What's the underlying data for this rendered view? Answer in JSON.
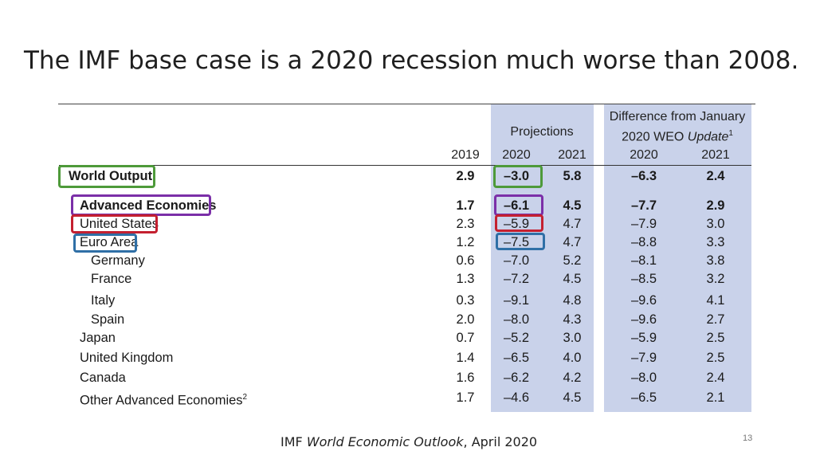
{
  "slide": {
    "title": "The IMF base case is a 2020 recession much worse than 2008.",
    "source_prefix": "IMF ",
    "source_italic": "World Economic Outlook",
    "source_suffix": ", April 2020",
    "page_number": "13"
  },
  "table": {
    "projections_label": "Projections",
    "diff_line1": "Difference from January",
    "diff_line2_prefix": "2020 WEO ",
    "diff_line2_italic": "Update",
    "diff_line2_sup": "1",
    "year_headers": {
      "y2019": "2019",
      "p2020": "2020",
      "p2021": "2021",
      "d2020": "2020",
      "d2021": "2021"
    },
    "rows": [
      {
        "label": "World Output",
        "y2019": "2.9",
        "p2020": "–3.0",
        "p2021": "5.8",
        "d2020": "–6.3",
        "d2021": "2.4"
      },
      {
        "label": "Advanced Economies",
        "y2019": "1.7",
        "p2020": "–6.1",
        "p2021": "4.5",
        "d2020": "–7.7",
        "d2021": "2.9"
      },
      {
        "label": "United States",
        "y2019": "2.3",
        "p2020": "–5.9",
        "p2021": "4.7",
        "d2020": "–7.9",
        "d2021": "3.0"
      },
      {
        "label": "Euro Area",
        "y2019": "1.2",
        "p2020": "–7.5",
        "p2021": "4.7",
        "d2020": "–8.8",
        "d2021": "3.3"
      },
      {
        "label": "Germany",
        "y2019": "0.6",
        "p2020": "–7.0",
        "p2021": "5.2",
        "d2020": "–8.1",
        "d2021": "3.8"
      },
      {
        "label": "France",
        "y2019": "1.3",
        "p2020": "–7.2",
        "p2021": "4.5",
        "d2020": "–8.5",
        "d2021": "3.2"
      },
      {
        "label": "Italy",
        "y2019": "0.3",
        "p2020": "–9.1",
        "p2021": "4.8",
        "d2020": "–9.6",
        "d2021": "4.1"
      },
      {
        "label": "Spain",
        "y2019": "2.0",
        "p2020": "–8.0",
        "p2021": "4.3",
        "d2020": "–9.6",
        "d2021": "2.7"
      },
      {
        "label": "Japan",
        "y2019": "0.7",
        "p2020": "–5.2",
        "p2021": "3.0",
        "d2020": "–5.9",
        "d2021": "2.5"
      },
      {
        "label": "United Kingdom",
        "y2019": "1.4",
        "p2020": "–6.5",
        "p2021": "4.0",
        "d2020": "–7.9",
        "d2021": "2.5"
      },
      {
        "label": "Canada",
        "y2019": "1.6",
        "p2020": "–6.2",
        "p2021": "4.2",
        "d2020": "–8.0",
        "d2021": "2.4"
      },
      {
        "label": "Other Advanced Economies",
        "label_sup": "2",
        "y2019": "1.7",
        "p2020": "–4.6",
        "p2021": "4.5",
        "d2020": "–6.5",
        "d2021": "2.1"
      }
    ]
  }
}
